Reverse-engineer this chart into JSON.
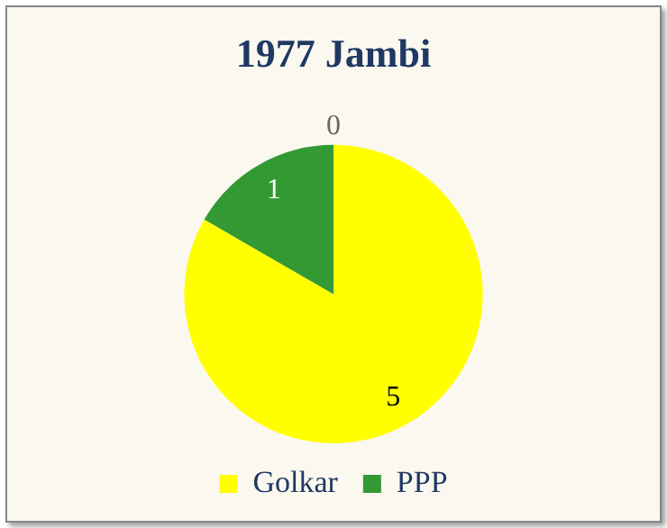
{
  "chart_data": {
    "type": "pie",
    "title": "1977 Jambi",
    "categories": [
      "Golkar",
      "PPP",
      null
    ],
    "values": [
      5,
      1,
      0
    ],
    "colors": [
      "#ffff00",
      "#339933",
      "#ffffff"
    ],
    "value_labels": [
      "5",
      "1",
      "0"
    ],
    "legend": "bottom"
  }
}
